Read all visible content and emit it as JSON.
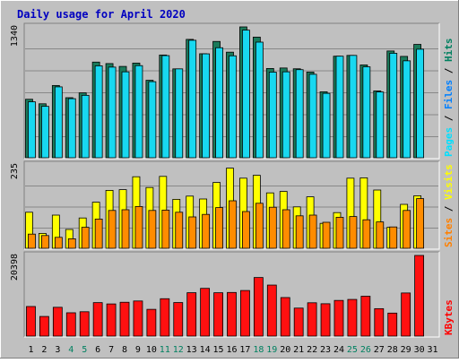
{
  "chart_data": {
    "type": "bar",
    "title": "Daily usage for April 2020",
    "x": [
      "1",
      "2",
      "3",
      "4",
      "5",
      "6",
      "7",
      "8",
      "9",
      "10",
      "11",
      "12",
      "13",
      "14",
      "15",
      "16",
      "17",
      "18",
      "19",
      "20",
      "21",
      "22",
      "23",
      "24",
      "25",
      "26",
      "27",
      "28",
      "29",
      "30",
      "31"
    ],
    "weekend_days": [
      "4",
      "5",
      "11",
      "12",
      "18",
      "19",
      "25",
      "26"
    ],
    "panels": [
      {
        "key": "top",
        "max_label": "1340",
        "ylim": [
          0,
          1340
        ],
        "grid": true,
        "legend": [
          {
            "text": "Pages",
            "color": "#00e0ff"
          },
          {
            "text": "Files",
            "color": "#0080ff"
          },
          {
            "text": "Hits",
            "color": "#008060"
          }
        ],
        "series": [
          {
            "name": "Hits",
            "color": "#1a7a5a",
            "values": [
              604,
              558,
              744,
              620,
              669,
              982,
              967,
              938,
              972,
              797,
              1054,
              913,
              1213,
              1067,
              1192,
              1083,
              1340,
              1236,
              917,
              922,
              914,
              881,
              680,
              1042,
              1050,
              953,
              689,
              1095,
              1040,
              1162
            ]
          },
          {
            "name": "Pages",
            "color": "#18d8f0",
            "values": [
              578,
              532,
              730,
              610,
              644,
              944,
              931,
              883,
              946,
              783,
              1048,
              913,
              1204,
              1066,
              1128,
              1046,
              1307,
              1185,
              880,
              883,
              905,
              858,
              664,
              1042,
              1050,
              934,
              678,
              1072,
              995,
              1113
            ]
          }
        ]
      },
      {
        "key": "mid",
        "max_label": "235",
        "ylim": [
          0,
          235
        ],
        "grid": true,
        "legend": [
          {
            "text": "Sites",
            "color": "#ff8000"
          },
          {
            "text": "Visits",
            "color": "#ffff00"
          }
        ],
        "series": [
          {
            "name": "Visits",
            "color": "#ffff00",
            "values": [
              103,
              44,
              95,
              55,
              87,
              131,
              164,
              166,
              202,
              172,
              203,
              139,
              148,
              140,
              186,
              226,
              198,
              206,
              157,
              161,
              118,
              146,
              72,
              102,
              198,
              199,
              165,
              61,
              125,
              149
            ]
          },
          {
            "name": "Sites",
            "color": "#ff8c00",
            "values": [
              42,
              38,
              33,
              29,
              61,
              84,
              108,
              110,
              119,
              108,
              109,
              103,
              90,
              97,
              116,
              135,
              105,
              128,
              117,
              110,
              93,
              95,
              75,
              89,
              91,
              82,
              76,
              62,
              108,
              141
            ]
          }
        ]
      },
      {
        "key": "bot",
        "max_label": "20398",
        "ylim": [
          0,
          20398
        ],
        "grid": false,
        "legend": [
          {
            "text": "KBytes",
            "color": "#ff0000"
          }
        ],
        "series": [
          {
            "name": "KBytes",
            "color": "#ff1010",
            "values": [
              7630,
              5140,
              7430,
              6060,
              6320,
              8600,
              8270,
              8690,
              9010,
              6920,
              9580,
              8620,
              11080,
              12170,
              11070,
              11140,
              11630,
              14880,
              12990,
              9870,
              7230,
              8560,
              8320,
              9150,
              9400,
              10200,
              7090,
              5980,
              11010,
              20398
            ]
          }
        ]
      }
    ]
  }
}
